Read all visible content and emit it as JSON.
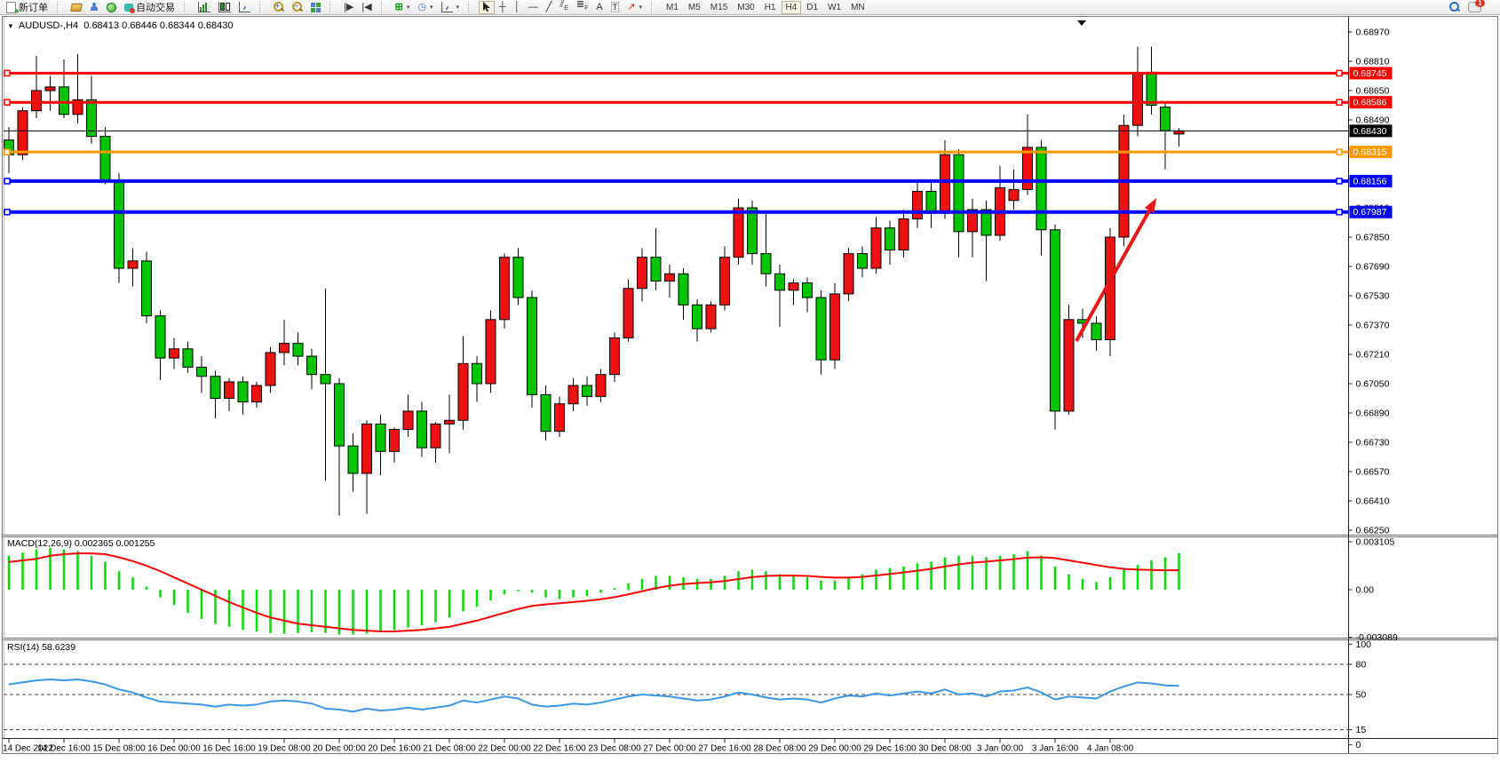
{
  "toolbar": {
    "new_order_label": "新订单",
    "auto_trading_label": "自动交易",
    "text_tool_label": "A",
    "label_tool_label": "T",
    "channel_tool_label": "E",
    "fibo_tool_label": "F",
    "timeframes": [
      "M1",
      "M5",
      "M15",
      "M30",
      "H1",
      "H4",
      "D1",
      "W1",
      "MN"
    ],
    "active_timeframe": "H4",
    "notification_badge": "1"
  },
  "chart": {
    "symbol_line": "AUDUSD-,H4  0.68413 0.68446 0.68344 0.68430",
    "macd_label": "MACD(12,26,9) 0.002365 0.001255",
    "rsi_label": "RSI(14) 58.6239"
  },
  "chart_data": {
    "type": "candlestick",
    "symbol": "AUDUSD-",
    "timeframe": "H4",
    "quote": {
      "open": 0.68413,
      "high": 0.68446,
      "low": 0.68344,
      "close": 0.6843
    },
    "up_color": "#ee1111",
    "down_color": "#00c400",
    "wick_color": "#000000",
    "y_range": [
      0.6625,
      0.6897
    ],
    "price_ticks": [
      "0.68970",
      "0.68810",
      "0.68650",
      "0.68490",
      "0.68330",
      "0.68170",
      "0.68010",
      "0.67850",
      "0.67690",
      "0.67530",
      "0.67370",
      "0.67210",
      "0.67050",
      "0.66890",
      "0.66730",
      "0.66570",
      "0.66410",
      "0.66250"
    ],
    "time_labels": [
      "14 Dec 2022",
      "14 Dec 16:00",
      "15 Dec 08:00",
      "16 Dec 00:00",
      "16 Dec 16:00",
      "19 Dec 08:00",
      "20 Dec 00:00",
      "20 Dec 16:00",
      "21 Dec 08:00",
      "22 Dec 00:00",
      "22 Dec 16:00",
      "23 Dec 08:00",
      "27 Dec 00:00",
      "27 Dec 16:00",
      "28 Dec 08:00",
      "29 Dec 00:00",
      "29 Dec 16:00",
      "30 Dec 08:00",
      "3 Jan 00:00",
      "3 Jan 16:00",
      "4 Jan 08:00"
    ],
    "label_every": 4,
    "ohlc": [
      [
        0.6838,
        0.6845,
        0.682,
        0.683
      ],
      [
        0.683,
        0.6856,
        0.6827,
        0.6854
      ],
      [
        0.6854,
        0.6884,
        0.685,
        0.6865
      ],
      [
        0.6865,
        0.6873,
        0.6854,
        0.6867
      ],
      [
        0.6867,
        0.6882,
        0.685,
        0.6852
      ],
      [
        0.6852,
        0.6885,
        0.6847,
        0.686
      ],
      [
        0.686,
        0.6873,
        0.6836,
        0.684
      ],
      [
        0.684,
        0.6845,
        0.6814,
        0.6816
      ],
      [
        0.6816,
        0.682,
        0.676,
        0.6768
      ],
      [
        0.6768,
        0.6779,
        0.6758,
        0.6772
      ],
      [
        0.6772,
        0.6777,
        0.6738,
        0.6742
      ],
      [
        0.6742,
        0.6745,
        0.6707,
        0.6719
      ],
      [
        0.6719,
        0.673,
        0.6713,
        0.6724
      ],
      [
        0.6724,
        0.6728,
        0.6711,
        0.6714
      ],
      [
        0.6714,
        0.672,
        0.67,
        0.6709
      ],
      [
        0.6709,
        0.6712,
        0.6686,
        0.6697
      ],
      [
        0.6697,
        0.6708,
        0.669,
        0.6706
      ],
      [
        0.6706,
        0.6709,
        0.6688,
        0.6695
      ],
      [
        0.6695,
        0.6706,
        0.6692,
        0.6704
      ],
      [
        0.6704,
        0.6725,
        0.67,
        0.6722
      ],
      [
        0.6722,
        0.674,
        0.6715,
        0.6727
      ],
      [
        0.6727,
        0.6733,
        0.6715,
        0.672
      ],
      [
        0.672,
        0.6724,
        0.6702,
        0.671
      ],
      [
        0.671,
        0.6757,
        0.6652,
        0.6705
      ],
      [
        0.6705,
        0.6708,
        0.6633,
        0.6671
      ],
      [
        0.6671,
        0.6678,
        0.6646,
        0.6656
      ],
      [
        0.6656,
        0.6685,
        0.6634,
        0.6683
      ],
      [
        0.6683,
        0.6688,
        0.6655,
        0.6668
      ],
      [
        0.6668,
        0.6681,
        0.6662,
        0.668
      ],
      [
        0.668,
        0.6699,
        0.6676,
        0.669
      ],
      [
        0.669,
        0.6695,
        0.6665,
        0.667
      ],
      [
        0.667,
        0.6684,
        0.6662,
        0.6683
      ],
      [
        0.6683,
        0.6699,
        0.6667,
        0.6685
      ],
      [
        0.6685,
        0.6731,
        0.668,
        0.6716
      ],
      [
        0.6716,
        0.672,
        0.6695,
        0.6705
      ],
      [
        0.6705,
        0.6745,
        0.67,
        0.674
      ],
      [
        0.674,
        0.6776,
        0.6735,
        0.6774
      ],
      [
        0.6774,
        0.6779,
        0.6748,
        0.6752
      ],
      [
        0.6752,
        0.6756,
        0.6692,
        0.6699
      ],
      [
        0.6699,
        0.6704,
        0.6674,
        0.6679
      ],
      [
        0.6679,
        0.6698,
        0.6676,
        0.6694
      ],
      [
        0.6694,
        0.6708,
        0.669,
        0.6704
      ],
      [
        0.6704,
        0.6709,
        0.6693,
        0.6698
      ],
      [
        0.6698,
        0.6713,
        0.6695,
        0.671
      ],
      [
        0.671,
        0.6733,
        0.6706,
        0.673
      ],
      [
        0.673,
        0.6762,
        0.6728,
        0.6757
      ],
      [
        0.6757,
        0.6779,
        0.675,
        0.6774
      ],
      [
        0.6774,
        0.679,
        0.6756,
        0.6761
      ],
      [
        0.6761,
        0.677,
        0.6752,
        0.6765
      ],
      [
        0.6765,
        0.6768,
        0.674,
        0.6748
      ],
      [
        0.6748,
        0.6751,
        0.6728,
        0.6735
      ],
      [
        0.6735,
        0.675,
        0.6733,
        0.6748
      ],
      [
        0.6748,
        0.678,
        0.6745,
        0.6774
      ],
      [
        0.6774,
        0.6806,
        0.677,
        0.6801
      ],
      [
        0.6801,
        0.6805,
        0.677,
        0.6776
      ],
      [
        0.6776,
        0.6798,
        0.6758,
        0.6765
      ],
      [
        0.6765,
        0.677,
        0.6736,
        0.6756
      ],
      [
        0.6756,
        0.6762,
        0.6748,
        0.676
      ],
      [
        0.676,
        0.6763,
        0.6744,
        0.6752
      ],
      [
        0.6752,
        0.6756,
        0.671,
        0.6718
      ],
      [
        0.6718,
        0.676,
        0.6713,
        0.6754
      ],
      [
        0.6754,
        0.6779,
        0.675,
        0.6776
      ],
      [
        0.6776,
        0.678,
        0.6763,
        0.6768
      ],
      [
        0.6768,
        0.6796,
        0.6765,
        0.679
      ],
      [
        0.679,
        0.6794,
        0.677,
        0.6778
      ],
      [
        0.6778,
        0.68,
        0.6774,
        0.6795
      ],
      [
        0.6795,
        0.6816,
        0.679,
        0.681
      ],
      [
        0.681,
        0.6815,
        0.679,
        0.6798
      ],
      [
        0.6798,
        0.6838,
        0.6795,
        0.683
      ],
      [
        0.683,
        0.6833,
        0.6774,
        0.6788
      ],
      [
        0.6788,
        0.6806,
        0.6774,
        0.68
      ],
      [
        0.68,
        0.6805,
        0.6761,
        0.6786
      ],
      [
        0.6786,
        0.6824,
        0.6783,
        0.6812
      ],
      [
        0.6805,
        0.6822,
        0.68,
        0.6811
      ],
      [
        0.6811,
        0.6852,
        0.6808,
        0.6834
      ],
      [
        0.6834,
        0.6838,
        0.6775,
        0.6789
      ],
      [
        0.6789,
        0.6792,
        0.668,
        0.669
      ],
      [
        0.669,
        0.6748,
        0.6688,
        0.674
      ],
      [
        0.674,
        0.6746,
        0.673,
        0.6738
      ],
      [
        0.6738,
        0.6742,
        0.6723,
        0.6729
      ],
      [
        0.6729,
        0.679,
        0.672,
        0.6785
      ],
      [
        0.6785,
        0.6852,
        0.678,
        0.6846
      ],
      [
        0.6846,
        0.6889,
        0.684,
        0.6874
      ],
      [
        0.6875,
        0.6889,
        0.6852,
        0.6857
      ],
      [
        0.6856,
        0.6858,
        0.6822,
        0.6843
      ],
      [
        0.68413,
        0.68446,
        0.68344,
        0.6843
      ]
    ],
    "hlines": [
      {
        "price": 0.68745,
        "label": "0.68745",
        "color": "#ff0000",
        "width": 3,
        "handles": true
      },
      {
        "price": 0.68586,
        "label": "0.68586",
        "color": "#ff0000",
        "width": 3,
        "handles": true
      },
      {
        "price": 0.6843,
        "label": "0.68430",
        "color": "#000000",
        "width": 1,
        "handles": false
      },
      {
        "price": 0.68315,
        "label": "0.68315",
        "color": "#ff9900",
        "width": 3,
        "handles": true
      },
      {
        "price": 0.68156,
        "label": "0.68156",
        "color": "#0000ff",
        "width": 4,
        "handles": true
      },
      {
        "price": 0.67987,
        "label": "0.67987",
        "color": "#0000ff",
        "width": 4,
        "handles": true
      }
    ],
    "macd": {
      "label": "MACD(12,26,9) 0.002365 0.001255",
      "params": [
        12,
        26,
        9
      ],
      "current_main": 0.002365,
      "current_signal": 0.001255,
      "hist_color": "#00dd00",
      "signal_color": "#ff0000",
      "axis_ticks": [
        {
          "label": "0.003105",
          "value": 0.003105
        },
        {
          "label": "0.00",
          "value": 0
        },
        {
          "label": "-0.003089",
          "value": -0.003089
        }
      ],
      "histogram": [
        0.0022,
        0.0024,
        0.0026,
        0.0027,
        0.0026,
        0.0025,
        0.0022,
        0.0018,
        0.0012,
        0.0008,
        0.0002,
        -0.0005,
        -0.001,
        -0.0015,
        -0.0019,
        -0.0022,
        -0.0024,
        -0.0026,
        -0.0027,
        -0.0028,
        -0.00285,
        -0.0028,
        -0.00275,
        -0.0028,
        -0.0029,
        -0.0029,
        -0.00285,
        -0.00275,
        -0.0026,
        -0.00245,
        -0.0023,
        -0.0021,
        -0.0018,
        -0.0014,
        -0.0011,
        -0.0007,
        -0.0003,
        -0.0001,
        -0.0002,
        -0.0005,
        -0.0006,
        -0.0005,
        -0.0004,
        -0.0002,
        0.0001,
        0.0004,
        0.0007,
        0.0009,
        0.0009,
        0.0008,
        0.0007,
        0.0007,
        0.0009,
        0.0012,
        0.0013,
        0.0012,
        0.001,
        0.0009,
        0.0008,
        0.0006,
        0.0006,
        0.0008,
        0.001,
        0.0013,
        0.0014,
        0.0015,
        0.0017,
        0.0018,
        0.0021,
        0.0022,
        0.0022,
        0.0021,
        0.0022,
        0.0023,
        0.0025,
        0.0022,
        0.0015,
        0.001,
        0.0007,
        0.0005,
        0.0008,
        0.0013,
        0.0016,
        0.0019,
        0.0021,
        0.002365
      ],
      "signal": [
        0.0018,
        0.0019,
        0.002,
        0.0022,
        0.0023,
        0.00235,
        0.00235,
        0.0023,
        0.0021,
        0.00185,
        0.00155,
        0.0012,
        0.0008,
        0.0004,
        0.0,
        -0.0004,
        -0.0008,
        -0.00115,
        -0.0015,
        -0.0018,
        -0.002,
        -0.0022,
        -0.0023,
        -0.0024,
        -0.0025,
        -0.0026,
        -0.00265,
        -0.0027,
        -0.0027,
        -0.00265,
        -0.0026,
        -0.0025,
        -0.0024,
        -0.0022,
        -0.002,
        -0.00175,
        -0.0015,
        -0.00125,
        -0.00105,
        -0.00095,
        -0.00088,
        -0.0008,
        -0.00072,
        -0.00062,
        -0.00048,
        -0.0003,
        -0.0001,
        0.0001,
        0.00026,
        0.00037,
        0.00043,
        0.00048,
        0.00056,
        0.00069,
        0.00081,
        0.00089,
        0.00091,
        0.00091,
        0.00089,
        0.00083,
        0.00078,
        0.00078,
        0.00083,
        0.00092,
        0.00102,
        0.00112,
        0.00123,
        0.00135,
        0.0015,
        0.00164,
        0.00175,
        0.00182,
        0.0019,
        0.00198,
        0.00208,
        0.0021,
        0.00205,
        0.0019,
        0.00175,
        0.0016,
        0.00145,
        0.00135,
        0.0013,
        0.00128,
        0.00126,
        0.001255
      ]
    },
    "rsi": {
      "label": "RSI(14) 58.6239",
      "period": 14,
      "current": 58.6239,
      "color": "#3b97e3",
      "axis_ticks": [
        {
          "label": "100",
          "value": 100,
          "dashed": false
        },
        {
          "label": "80",
          "value": 80,
          "dashed": true
        },
        {
          "label": "50",
          "value": 50,
          "dashed": true
        },
        {
          "label": "15",
          "value": 15,
          "dashed": true
        },
        {
          "label": "0",
          "value": 0,
          "dashed": false
        }
      ],
      "values": [
        60,
        62,
        64,
        65,
        64,
        65,
        63,
        60,
        55,
        52,
        47,
        43,
        42,
        41,
        40,
        38,
        40,
        39,
        40,
        43,
        44,
        43,
        41,
        36,
        35,
        33,
        36,
        34,
        35,
        37,
        35,
        37,
        39,
        44,
        42,
        45,
        48,
        46,
        40,
        38,
        39,
        41,
        40,
        42,
        45,
        48,
        50,
        49,
        48,
        46,
        44,
        45,
        48,
        52,
        50,
        47,
        45,
        46,
        45,
        42,
        46,
        49,
        48,
        51,
        49,
        51,
        53,
        51,
        55,
        50,
        51,
        48,
        53,
        54,
        57,
        52,
        45,
        48,
        47,
        46,
        53,
        58,
        62,
        61,
        59,
        58.62
      ]
    },
    "arrow": {
      "from": [
        1212,
        384
      ],
      "to": [
        1302,
        223
      ],
      "color": "#e81717",
      "width": 4
    }
  }
}
